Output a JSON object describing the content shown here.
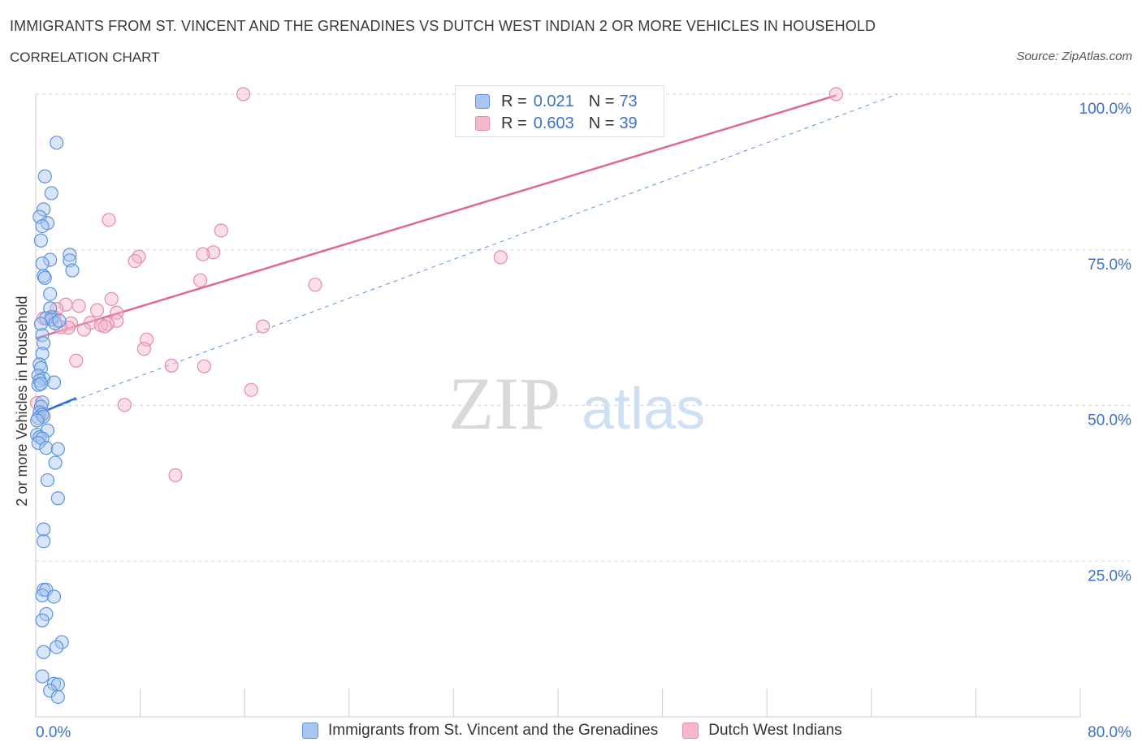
{
  "header": {
    "title": "IMMIGRANTS FROM ST. VINCENT AND THE GRENADINES VS DUTCH WEST INDIAN 2 OR MORE VEHICLES IN HOUSEHOLD",
    "subtitle": "CORRELATION CHART",
    "source": "Source: ZipAtlas.com"
  },
  "watermark": {
    "zip": "ZIP",
    "atlas": "atlas"
  },
  "colors": {
    "blue_fill": "#a8c6f0",
    "blue_stroke": "#5b93e0",
    "blue_line": "#2f6fd6",
    "pink_fill": "#f5b8cb",
    "pink_stroke": "#e58aa8",
    "pink_line": "#e06890",
    "axis_text": "#3a72c8",
    "grid": "#d9d9d9"
  },
  "legend": {
    "rows": [
      {
        "r_label": "R =",
        "r_value": "0.021",
        "n_label": "N =",
        "n_value": "73"
      },
      {
        "r_label": "R =",
        "r_value": "0.603",
        "n_label": "N =",
        "n_value": "39"
      }
    ]
  },
  "chart_data": {
    "type": "scatter",
    "title": "IMMIGRANTS FROM ST. VINCENT AND THE GRENADINES VS DUTCH WEST INDIAN 2 OR MORE VEHICLES IN HOUSEHOLD",
    "subtitle": "CORRELATION CHART",
    "xlabel": "",
    "ylabel": "2 or more Vehicles in Household",
    "xlim": [
      0,
      80
    ],
    "ylim": [
      0,
      100
    ],
    "x_tick_labels": [
      "0.0%",
      "80.0%"
    ],
    "y_tick_values": [
      25,
      50,
      75,
      100
    ],
    "y_tick_labels": [
      "25.0%",
      "50.0%",
      "75.0%",
      "100.0%"
    ],
    "grid": "horizontal dashed",
    "series": [
      {
        "name": "Immigrants from St. Vincent and the Grenadines",
        "color": "#5b93e0",
        "R": 0.021,
        "N": 73,
        "trend": {
          "x": [
            0,
            3.1
          ],
          "y": [
            48.5,
            51.2
          ],
          "style": "solid"
        },
        "trend_extended": {
          "x": [
            0,
            66
          ],
          "y": [
            48.5,
            100
          ],
          "style": "dashed"
        },
        "points": [
          [
            1.6,
            92.2
          ],
          [
            0.7,
            86.8
          ],
          [
            1.2,
            84.1
          ],
          [
            0.6,
            81.5
          ],
          [
            0.3,
            80.3
          ],
          [
            0.9,
            79.3
          ],
          [
            0.5,
            78.8
          ],
          [
            0.4,
            76.5
          ],
          [
            2.6,
            74.2
          ],
          [
            2.6,
            73.3
          ],
          [
            1.1,
            73.4
          ],
          [
            0.5,
            72.8
          ],
          [
            2.8,
            71.7
          ],
          [
            0.6,
            70.8
          ],
          [
            0.7,
            70.5
          ],
          [
            1.1,
            67.9
          ],
          [
            1.1,
            65.6
          ],
          [
            1.2,
            64.2
          ],
          [
            0.8,
            64.0
          ],
          [
            1.2,
            63.8
          ],
          [
            1.5,
            63.2
          ],
          [
            1.8,
            63.6
          ],
          [
            0.4,
            63.1
          ],
          [
            0.5,
            61.3
          ],
          [
            0.6,
            60.0
          ],
          [
            0.5,
            58.3
          ],
          [
            0.3,
            56.6
          ],
          [
            0.4,
            56.0
          ],
          [
            0.2,
            54.8
          ],
          [
            0.6,
            54.3
          ],
          [
            0.3,
            54.0
          ],
          [
            1.4,
            53.7
          ],
          [
            0.2,
            53.3
          ],
          [
            0.4,
            53.5
          ],
          [
            0.5,
            50.5
          ],
          [
            0.4,
            49.8
          ],
          [
            0.3,
            48.9
          ],
          [
            0.5,
            48.5
          ],
          [
            0.2,
            48.0
          ],
          [
            0.6,
            48.2
          ],
          [
            0.1,
            47.6
          ],
          [
            0.9,
            46.0
          ],
          [
            0.1,
            45.3
          ],
          [
            0.3,
            44.9
          ],
          [
            0.5,
            44.7
          ],
          [
            0.2,
            44.0
          ],
          [
            0.8,
            43.2
          ],
          [
            1.7,
            43.0
          ],
          [
            1.5,
            40.8
          ],
          [
            0.9,
            38.0
          ],
          [
            1.7,
            35.1
          ],
          [
            0.6,
            30.1
          ],
          [
            0.6,
            28.2
          ],
          [
            0.6,
            20.4
          ],
          [
            0.8,
            20.4
          ],
          [
            0.5,
            19.5
          ],
          [
            1.4,
            19.3
          ],
          [
            0.8,
            16.5
          ],
          [
            0.5,
            15.5
          ],
          [
            2.0,
            12.0
          ],
          [
            1.6,
            11.2
          ],
          [
            0.6,
            10.4
          ],
          [
            0.5,
            6.5
          ],
          [
            1.4,
            5.3
          ],
          [
            1.7,
            5.2
          ],
          [
            1.1,
            4.2
          ],
          [
            1.7,
            3.2
          ]
        ]
      },
      {
        "name": "Dutch West Indians",
        "color": "#e58aa8",
        "R": 0.603,
        "N": 39,
        "trend": {
          "x": [
            0,
            61.3
          ],
          "y": [
            60.8,
            99.8
          ],
          "style": "solid"
        },
        "points": [
          [
            15.9,
            100.0
          ],
          [
            61.3,
            100.0
          ],
          [
            5.6,
            79.8
          ],
          [
            14.2,
            78.1
          ],
          [
            13.6,
            74.6
          ],
          [
            12.8,
            74.3
          ],
          [
            7.9,
            73.9
          ],
          [
            7.6,
            73.2
          ],
          [
            35.6,
            73.8
          ],
          [
            12.6,
            70.1
          ],
          [
            21.4,
            69.4
          ],
          [
            5.8,
            67.1
          ],
          [
            2.3,
            66.2
          ],
          [
            3.3,
            66.0
          ],
          [
            1.6,
            65.5
          ],
          [
            4.7,
            65.3
          ],
          [
            6.2,
            64.9
          ],
          [
            1.4,
            64.2
          ],
          [
            6.2,
            63.6
          ],
          [
            2.7,
            63.2
          ],
          [
            4.2,
            63.3
          ],
          [
            5.5,
            63.1
          ],
          [
            2.5,
            62.5
          ],
          [
            5.0,
            62.9
          ],
          [
            5.3,
            62.7
          ],
          [
            17.4,
            62.7
          ],
          [
            1.9,
            62.6
          ],
          [
            3.7,
            62.2
          ],
          [
            8.5,
            60.6
          ],
          [
            8.3,
            59.1
          ],
          [
            3.1,
            57.2
          ],
          [
            10.4,
            56.4
          ],
          [
            12.9,
            56.3
          ],
          [
            16.5,
            52.5
          ],
          [
            6.8,
            50.1
          ],
          [
            0.1,
            50.4
          ],
          [
            0.5,
            48.8
          ],
          [
            10.7,
            38.8
          ],
          [
            0.6,
            64.0
          ]
        ]
      }
    ]
  },
  "bottom_legend": [
    {
      "label": "Immigrants from St. Vincent and the Grenadines"
    },
    {
      "label": "Dutch West Indians"
    }
  ]
}
